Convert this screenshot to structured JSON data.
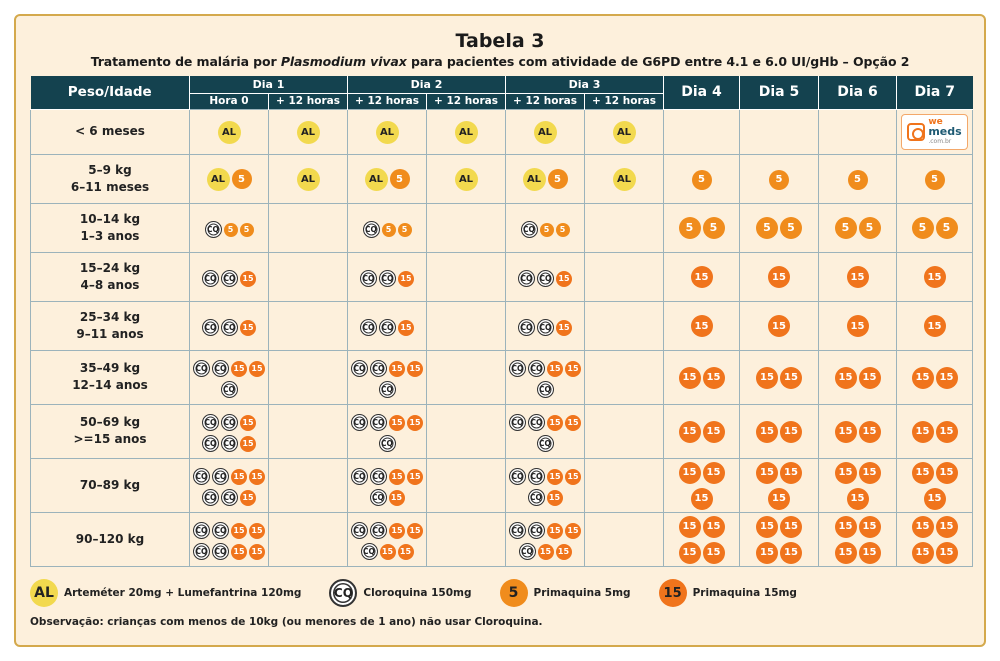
{
  "title": "Tabela 3",
  "subtitle": {
    "pre": "Tratamento de malária por ",
    "species": "Plasmodium vivax",
    "post": " para pacientes com atividade de G6PD entre 4.1 e 6.0 UI/gHb – Opção 2"
  },
  "header": {
    "peso": "Peso/Idade",
    "dia1": "Dia 1",
    "dia2": "Dia 2",
    "dia3": "Dia 3",
    "dia4": "Dia 4",
    "dia5": "Dia 5",
    "dia6": "Dia 6",
    "dia7": "Dia 7",
    "sub": [
      "Hora 0",
      "+ 12 horas",
      "+ 12 horas",
      "+ 12 horas",
      "+ 12 horas",
      "+ 12 horas"
    ]
  },
  "logo": {
    "a": "we",
    "b": "meds",
    "c": ".com.br"
  },
  "tokens": {
    "AL": "AL",
    "CQ": "CQ",
    "P5": "5",
    "P15": "15"
  },
  "rows": [
    {
      "l1": "< 6 meses",
      "l2": "",
      "h": 45,
      "cells": [
        [
          "AL"
        ],
        [
          "AL"
        ],
        [
          "AL"
        ],
        [
          "AL"
        ],
        [
          "AL"
        ],
        [
          "AL"
        ],
        [],
        [],
        [],
        [
          "LOGO"
        ]
      ]
    },
    {
      "l1": "5–9 kg",
      "l2": "6–11 meses",
      "h": 49,
      "cells": [
        [
          "AL",
          "P5B"
        ],
        [
          "AL"
        ],
        [
          "AL",
          "P5B"
        ],
        [
          "AL"
        ],
        [
          "AL",
          "P5B"
        ],
        [
          "AL"
        ],
        [
          "P5B"
        ],
        [
          "P5B"
        ],
        [
          "P5B"
        ],
        [
          "P5B"
        ]
      ]
    },
    {
      "l1": "10–14 kg",
      "l2": "1–3 anos",
      "h": 49,
      "cells": [
        [
          "CQ",
          "P5S",
          "P5S"
        ],
        [],
        [
          "CQ",
          "P5S",
          "P5S"
        ],
        [],
        [
          "CQ",
          "P5S",
          "P5S"
        ],
        [],
        [
          "P5M",
          "P5M"
        ],
        [
          "P5M",
          "P5M"
        ],
        [
          "P5M",
          "P5M"
        ],
        [
          "P5M",
          "P5M"
        ]
      ]
    },
    {
      "l1": "15–24 kg",
      "l2": "4–8 anos",
      "h": 49,
      "cells": [
        [
          "CQ",
          "CQ",
          "P15S"
        ],
        [],
        [
          "CQ",
          "CQ",
          "P15S"
        ],
        [],
        [
          "CQ",
          "CQ",
          "P15S"
        ],
        [],
        [
          "P15B"
        ],
        [
          "P15B"
        ],
        [
          "P15B"
        ],
        [
          "P15B"
        ]
      ]
    },
    {
      "l1": "25–34 kg",
      "l2": "9–11 anos",
      "h": 49,
      "cells": [
        [
          "CQ",
          "CQ",
          "P15S"
        ],
        [],
        [
          "CQ",
          "CQ",
          "P15S"
        ],
        [],
        [
          "CQ",
          "CQ",
          "P15S"
        ],
        [],
        [
          "P15B"
        ],
        [
          "P15B"
        ],
        [
          "P15B"
        ],
        [
          "P15B"
        ]
      ]
    },
    {
      "l1": "35–49 kg",
      "l2": "12–14 anos",
      "h": 54,
      "cells": [
        [
          "CQ",
          "CQ",
          "P15S",
          "P15S",
          "BR",
          "CQ"
        ],
        [],
        [
          "CQ",
          "CQ",
          "P15S",
          "P15S",
          "BR",
          "CQ"
        ],
        [],
        [
          "CQ",
          "CQ",
          "P15S",
          "P15S",
          "BR",
          "CQ"
        ],
        [],
        [
          "P15B",
          "P15B"
        ],
        [
          "P15B",
          "P15B"
        ],
        [
          "P15B",
          "P15B"
        ],
        [
          "P15B",
          "P15B"
        ]
      ]
    },
    {
      "l1": "50–69 kg",
      "l2": ">=15 anos",
      "h": 54,
      "cells": [
        [
          "CQ",
          "CQ",
          "P15S",
          "BR",
          "CQ",
          "CQ",
          "P15S"
        ],
        [],
        [
          "CQ",
          "CQ",
          "P15S",
          "P15S",
          "BR",
          "CQ"
        ],
        [],
        [
          "CQ",
          "CQ",
          "P15S",
          "P15S",
          "BR",
          "CQ"
        ],
        [],
        [
          "P15B",
          "P15B"
        ],
        [
          "P15B",
          "P15B"
        ],
        [
          "P15B",
          "P15B"
        ],
        [
          "P15B",
          "P15B"
        ]
      ]
    },
    {
      "l1": "70–89 kg",
      "l2": "",
      "h": 54,
      "cells": [
        [
          "CQ",
          "CQ",
          "P15S",
          "P15S",
          "BR",
          "CQ",
          "CQ",
          "P15S"
        ],
        [],
        [
          "CQ",
          "CQ",
          "P15S",
          "P15S",
          "BR",
          "CQ",
          "P15S"
        ],
        [],
        [
          "CQ",
          "CQ",
          "P15S",
          "P15S",
          "BR",
          "CQ",
          "P15S"
        ],
        [],
        [
          "P15B",
          "P15B",
          "BR",
          "P15B"
        ],
        [
          "P15B",
          "P15B",
          "BR",
          "P15B"
        ],
        [
          "P15B",
          "P15B",
          "BR",
          "P15B"
        ],
        [
          "P15B",
          "P15B",
          "BR",
          "P15B"
        ]
      ]
    },
    {
      "l1": "90–120 kg",
      "l2": "",
      "h": 54,
      "cells": [
        [
          "CQ",
          "CQ",
          "P15S",
          "P15S",
          "BR",
          "CQ",
          "CQ",
          "P15S",
          "P15S"
        ],
        [],
        [
          "CQ",
          "CQ",
          "P15S",
          "P15S",
          "BR",
          "CQ",
          "P15S",
          "P15S"
        ],
        [],
        [
          "CQ",
          "CQ",
          "P15S",
          "P15S",
          "BR",
          "CQ",
          "P15S",
          "P15S"
        ],
        [],
        [
          "P15B",
          "P15B",
          "BR",
          "P15B",
          "P15B"
        ],
        [
          "P15B",
          "P15B",
          "BR",
          "P15B",
          "P15B"
        ],
        [
          "P15B",
          "P15B",
          "BR",
          "P15B",
          "P15B"
        ],
        [
          "P15B",
          "P15B",
          "BR",
          "P15B",
          "P15B"
        ]
      ]
    }
  ],
  "legend": {
    "al_symbol": "AL",
    "al_text": "Arteméter 20mg + Lumefantrina 120mg",
    "cq_symbol": "CQ",
    "cq_text": "Cloroquina 150mg",
    "p5_symbol": "5",
    "p5_text": "Primaquina 5mg",
    "p15_symbol": "15",
    "p15_text": "Primaquina 15mg"
  },
  "note": "Observação: crianças com menos de 10kg (ou menores de 1 ano) não usar Cloroquina.",
  "colors": {
    "header": "#14424f",
    "background": "#fdf0dc",
    "border": "#d4a94c",
    "artemeter": "#f2d94e",
    "primaquina5": "#f08c1c",
    "primaquina15": "#f0741c"
  }
}
